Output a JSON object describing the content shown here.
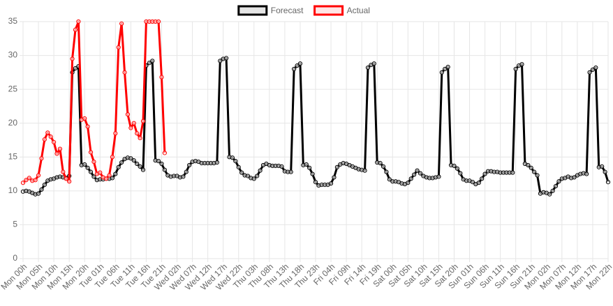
{
  "chart_data": {
    "type": "line",
    "categories": [
      "Mon 00h",
      null,
      null,
      null,
      null,
      "Mon 05h",
      null,
      null,
      null,
      null,
      "Mon 10h",
      null,
      null,
      null,
      null,
      "Mon 15h",
      null,
      null,
      null,
      null,
      "Mon 20h",
      null,
      null,
      null,
      null,
      "Tue 01h",
      null,
      null,
      null,
      null,
      "Tue 06h",
      null,
      null,
      null,
      null,
      "Tue 11h",
      null,
      null,
      null,
      null,
      "Tue 16h",
      null,
      null,
      null,
      null,
      "Tue 21h",
      null,
      null,
      null,
      null,
      "Wed 02h",
      null,
      null,
      null,
      null,
      "Wed 07h",
      null,
      null,
      null,
      null,
      "Wed 12h",
      null,
      null,
      null,
      null,
      "Wed 17h",
      null,
      null,
      null,
      null,
      "Wed 22h",
      null,
      null,
      null,
      null,
      "Thu 03h",
      null,
      null,
      null,
      null,
      "Thu 08h",
      null,
      null,
      null,
      null,
      "Thu 13h",
      null,
      null,
      null,
      null,
      "Thu 18h",
      null,
      null,
      null,
      null,
      "Thu 23h",
      null,
      null,
      null,
      null,
      "Fri 04h",
      null,
      null,
      null,
      null,
      "Fri 09h",
      null,
      null,
      null,
      null,
      "Fri 14h",
      null,
      null,
      null,
      null,
      "Fri 19h",
      null,
      null,
      null,
      null,
      "Sat 00h",
      null,
      null,
      null,
      null,
      "Sat 05h",
      null,
      null,
      null,
      null,
      "Sat 10h",
      null,
      null,
      null,
      null,
      "Sat 15h",
      null,
      null,
      null,
      null,
      "Sat 20h",
      null,
      null,
      null,
      null,
      "Sun 01h",
      null,
      null,
      null,
      null,
      "Sun 06h",
      null,
      null,
      null,
      null,
      "Sun 11h",
      null,
      null,
      null,
      null,
      "Sun 16h",
      null,
      null,
      null,
      null,
      "Sun 21h",
      null,
      null,
      null,
      null,
      "Mon 02h",
      null,
      null,
      null,
      null,
      "Mon 07h",
      null,
      null,
      null,
      null,
      "Mon 12h",
      null,
      null,
      null,
      null,
      "Mon 17h",
      null,
      null,
      null,
      null,
      "Mon 22h"
    ],
    "series": [
      {
        "name": "Forecast",
        "color": "#000000",
        "values": [
          9.9,
          10,
          9.9,
          9.7,
          9.5,
          9.6,
          10.2,
          10.9,
          11.5,
          11.7,
          11.8,
          12,
          12.1,
          12,
          11.9,
          12.2,
          27.5,
          28.1,
          28.4,
          13.8,
          13.9,
          13.4,
          12.8,
          12.1,
          11.6,
          11.7,
          11.7,
          11.8,
          11.8,
          11.9,
          12.5,
          13.5,
          14.2,
          14.7,
          14.9,
          14.8,
          14.5,
          14,
          13.6,
          13.1,
          28.5,
          28.9,
          29.2,
          14.5,
          14.4,
          14,
          13.1,
          12.3,
          12.1,
          12.2,
          12.2,
          12,
          12.1,
          12.8,
          13.8,
          14.3,
          14.4,
          14.3,
          14.1,
          14.1,
          14.1,
          14.1,
          14.1,
          14.2,
          29.2,
          29.5,
          29.6,
          15,
          14.9,
          14.4,
          13.5,
          12.7,
          12.3,
          12.2,
          11.9,
          11.8,
          12.2,
          13,
          13.8,
          14,
          13.8,
          13.7,
          13.7,
          13.7,
          13.6,
          12.9,
          12.8,
          12.8,
          28,
          28.5,
          28.8,
          13.8,
          13.9,
          13.4,
          12.5,
          11.3,
          10.8,
          10.9,
          10.9,
          10.9,
          11.1,
          12,
          13.5,
          13.9,
          14.1,
          14,
          13.8,
          13.6,
          13.4,
          13.2,
          13.1,
          13,
          28.2,
          28.6,
          28.8,
          14.2,
          14.1,
          13.6,
          12.8,
          11.7,
          11.4,
          11.4,
          11.3,
          11.1,
          11,
          11.2,
          11.8,
          12.4,
          13,
          12.6,
          12.2,
          12,
          11.9,
          11.9,
          12,
          12.1,
          27.5,
          28,
          28.3,
          13.8,
          13.7,
          13.3,
          12.6,
          11.7,
          11.5,
          11.5,
          11.3,
          11,
          11.2,
          11.8,
          12.5,
          12.9,
          12.9,
          12.8,
          12.8,
          12.7,
          12.7,
          12.7,
          12.7,
          12.7,
          28,
          28.5,
          28.7,
          14,
          13.8,
          13.4,
          12.8,
          12.3,
          9.6,
          9.8,
          9.7,
          9.5,
          10,
          10.7,
          11.4,
          11.8,
          11.9,
          12.1,
          11.9,
          12,
          12.3,
          12.5,
          12.6,
          12.5,
          27.5,
          27.9,
          28.2,
          13.5,
          13.6,
          12.8,
          11.3
        ]
      },
      {
        "name": "Actual",
        "color": "#ff0000",
        "values": [
          11.2,
          11.6,
          11.9,
          11.5,
          11.6,
          12.3,
          14.8,
          17.6,
          18.6,
          18,
          17.2,
          15.5,
          16.2,
          12.8,
          11.8,
          11.4,
          29.5,
          33.8,
          35,
          20.5,
          20.7,
          19.5,
          15.7,
          14.3,
          12.5,
          12.7,
          12,
          11.8,
          12.3,
          15,
          18.5,
          31.2,
          34.7,
          27.5,
          21.3,
          19.3,
          20,
          18.5,
          17.8,
          20.3,
          35,
          35,
          35,
          35,
          35,
          26.8,
          15.6,
          null,
          null,
          null,
          null,
          null,
          null,
          null,
          null,
          null,
          null,
          null,
          null,
          null,
          null,
          null,
          null,
          null,
          null,
          null,
          null,
          null,
          null,
          null,
          null,
          null,
          null,
          null,
          null,
          null,
          null,
          null,
          null,
          null,
          null,
          null,
          null,
          null,
          null,
          null,
          null,
          null,
          null,
          null,
          null,
          null,
          null,
          null,
          null,
          null,
          null,
          null,
          null,
          null,
          null,
          null,
          null,
          null,
          null,
          null,
          null,
          null,
          null,
          null,
          null,
          null,
          null,
          null,
          null,
          null,
          null,
          null,
          null,
          null,
          null,
          null,
          null,
          null,
          null,
          null,
          null,
          null,
          null,
          null,
          null,
          null,
          null,
          null,
          null,
          null,
          null,
          null,
          null,
          null,
          null,
          null,
          null,
          null,
          null,
          null,
          null,
          null,
          null,
          null,
          null,
          null,
          null,
          null,
          null,
          null,
          null,
          null,
          null,
          null,
          null,
          null,
          null,
          null,
          null,
          null,
          null,
          null,
          null,
          null,
          null,
          null,
          null,
          null,
          null,
          null,
          null,
          null,
          null,
          null,
          null,
          null,
          null,
          null,
          null,
          null,
          null,
          null,
          null,
          null,
          null
        ]
      }
    ],
    "ylim": [
      0,
      35
    ],
    "yticks": [
      0,
      5,
      10,
      15,
      20,
      25,
      30,
      35
    ],
    "grid": true,
    "legend": "top"
  }
}
